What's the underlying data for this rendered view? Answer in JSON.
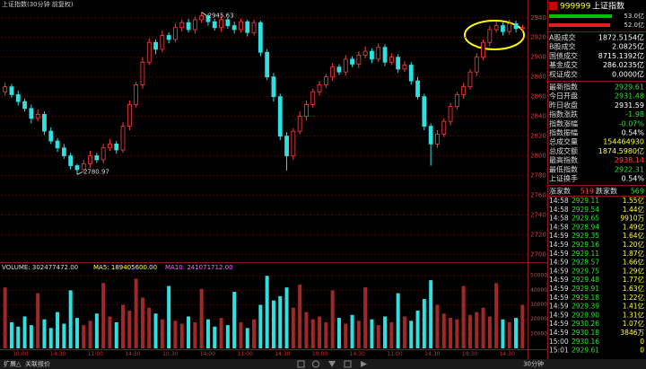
{
  "chart_data": [
    {
      "type": "candlestick",
      "title": "上证指数(30分钟 前复权)",
      "open": [
        2865,
        2870,
        2862,
        2855,
        2848,
        2838,
        2842,
        2825,
        2815,
        2808,
        2800,
        2790,
        2786,
        2792,
        2800,
        2796,
        2808,
        2812,
        2806,
        2830,
        2852,
        2872,
        2895,
        2915,
        2908,
        2922,
        2918,
        2930,
        2935,
        2928,
        2938,
        2942,
        2936,
        2930,
        2938,
        2932,
        2928,
        2936,
        2925,
        2935,
        2905,
        2880,
        2860,
        2820,
        2800,
        2825,
        2840,
        2852,
        2865,
        2872,
        2880,
        2890,
        2885,
        2898,
        2893,
        2902,
        2906,
        2898,
        2910,
        2895,
        2900,
        2888,
        2892,
        2876,
        2860,
        2830,
        2812,
        2822,
        2835,
        2850,
        2862,
        2870,
        2885,
        2900,
        2915,
        2928,
        2932,
        2926,
        2934,
        2929
      ],
      "high": [
        2874,
        2873,
        2866,
        2858,
        2852,
        2847,
        2845,
        2829,
        2818,
        2812,
        2803,
        2792,
        2796,
        2805,
        2803,
        2812,
        2817,
        2815,
        2834,
        2856,
        2875,
        2900,
        2919,
        2918,
        2927,
        2925,
        2934,
        2938,
        2939,
        2941,
        2945.63,
        2944,
        2939,
        2942,
        2940,
        2936,
        2939,
        2938,
        2938,
        2937,
        2908,
        2884,
        2863,
        2824,
        2828,
        2845,
        2856,
        2868,
        2876,
        2883,
        2894,
        2893,
        2902,
        2901,
        2906,
        2911,
        2909,
        2914,
        2913,
        2904,
        2903,
        2896,
        2895,
        2880,
        2863,
        2833,
        2826,
        2838,
        2854,
        2865,
        2874,
        2888,
        2904,
        2918,
        2932,
        2936,
        2935,
        2938,
        2937,
        2933
      ],
      "low": [
        2861,
        2859,
        2851,
        2845,
        2833,
        2835,
        2821,
        2812,
        2804,
        2797,
        2786,
        2780.97,
        2783,
        2788,
        2793,
        2792,
        2805,
        2802,
        2803,
        2826,
        2849,
        2868,
        2892,
        2903,
        2905,
        2914,
        2915,
        2926,
        2925,
        2924,
        2935,
        2932,
        2927,
        2926,
        2929,
        2924,
        2925,
        2921,
        2922,
        2901,
        2877,
        2855,
        2816,
        2785,
        2796,
        2822,
        2836,
        2849,
        2861,
        2869,
        2876,
        2882,
        2881,
        2890,
        2889,
        2899,
        2894,
        2895,
        2891,
        2892,
        2884,
        2885,
        2872,
        2857,
        2826,
        2790,
        2808,
        2819,
        2831,
        2847,
        2858,
        2867,
        2881,
        2897,
        2911,
        2925,
        2922,
        2923,
        2925,
        2926
      ],
      "close": [
        2870,
        2862,
        2855,
        2848,
        2838,
        2842,
        2825,
        2815,
        2808,
        2800,
        2790,
        2786,
        2792,
        2800,
        2796,
        2808,
        2812,
        2806,
        2830,
        2852,
        2872,
        2895,
        2915,
        2908,
        2922,
        2918,
        2930,
        2935,
        2928,
        2938,
        2942,
        2936,
        2930,
        2938,
        2932,
        2928,
        2936,
        2925,
        2935,
        2905,
        2880,
        2860,
        2820,
        2800,
        2825,
        2840,
        2852,
        2865,
        2872,
        2880,
        2890,
        2885,
        2898,
        2893,
        2902,
        2906,
        2898,
        2910,
        2895,
        2900,
        2888,
        2892,
        2876,
        2860,
        2830,
        2812,
        2822,
        2835,
        2850,
        2862,
        2870,
        2885,
        2900,
        2915,
        2928,
        2932,
        2926,
        2934,
        2929,
        2930
      ],
      "ylim": [
        2694,
        2958
      ],
      "yticks": [
        2700,
        2720,
        2740,
        2760,
        2780,
        2800,
        2820,
        2840,
        2860,
        2880,
        2900,
        2920,
        2940
      ],
      "up_color": "#ff3c3c",
      "down_color": "#30e0e0",
      "grid": true
    },
    {
      "type": "bar",
      "title": "VOLUME: 302477472.00",
      "annotations": [
        "MA5: 189405600.00",
        "MA10: 241071712.00"
      ],
      "values": [
        42000,
        18000,
        15000,
        22000,
        16000,
        38000,
        20000,
        14000,
        25000,
        17000,
        40000,
        21000,
        16000,
        19000,
        24000,
        45000,
        22000,
        18000,
        30000,
        26000,
        48000,
        35000,
        28000,
        24000,
        20000,
        43000,
        19000,
        17000,
        22000,
        18000,
        41000,
        20000,
        15000,
        21000,
        16000,
        39000,
        18000,
        14000,
        20000,
        30000,
        50000,
        33000,
        36000,
        42000,
        28000,
        44000,
        25000,
        20000,
        22000,
        18000,
        40000,
        21000,
        17000,
        23000,
        19000,
        42000,
        20000,
        16000,
        22000,
        18000,
        38000,
        22000,
        19000,
        26000,
        34000,
        47000,
        30000,
        24000,
        21000,
        20000,
        43000,
        23000,
        25000,
        28000,
        22000,
        45000,
        20000,
        18000,
        21000,
        30000
      ],
      "ylim": [
        0,
        52000
      ],
      "yticks": [
        10000,
        20000,
        30000,
        40000,
        50000
      ],
      "x_labels": [
        "10:00",
        "14:30",
        "11:00",
        "14:30",
        "10:30",
        "14:00",
        "11:00",
        "14:30",
        "10:00",
        "14:30",
        "11:00",
        "14:30",
        "10:30",
        "14:30"
      ]
    }
  ],
  "panel": {
    "code": "999999",
    "name": "上证指数",
    "bars": [
      "53.0亿",
      "52.0亿"
    ],
    "turnover": [
      [
        "A股成交",
        "1872.5154亿"
      ],
      [
        "B股成交",
        "2.0825亿"
      ],
      [
        "国债成交",
        "8715.1392亿"
      ],
      [
        "基金成交",
        "286.0235亿"
      ],
      [
        "权证成交",
        "0.0000亿"
      ]
    ],
    "index": [
      [
        "最新指数",
        "2929.61"
      ],
      [
        "今日开盘",
        "2931.48"
      ],
      [
        "昨日收盘",
        "2931.59"
      ],
      [
        "指数涨跌",
        "-1.98"
      ],
      [
        "指数涨幅",
        "-0.07%"
      ],
      [
        "指数振幅",
        "0.54%"
      ],
      [
        "总成交量",
        "154464930"
      ],
      [
        "总成交额",
        "1874.5980亿"
      ],
      [
        "最高指数",
        "2938.14"
      ],
      [
        "最低指数",
        "2922.31"
      ],
      [
        "上证换手",
        "0.54%"
      ]
    ],
    "breadth": [
      "涨家数",
      "519",
      "跌家数",
      "569"
    ],
    "ticks": [
      [
        "14:58",
        "2929.11",
        "1.55亿"
      ],
      [
        "14:58",
        "2929.54",
        "1.44亿"
      ],
      [
        "14:58",
        "2929.65",
        "9910万"
      ],
      [
        "14:58",
        "2928.94",
        "1.49亿"
      ],
      [
        "14:59",
        "2929.35",
        "1.64亿"
      ],
      [
        "14:59",
        "2929.16",
        "1.20亿"
      ],
      [
        "14:59",
        "2929.11",
        "1.87亿"
      ],
      [
        "14:59",
        "2928.57",
        "1.66亿"
      ],
      [
        "14:59",
        "2929.75",
        "1.29亿"
      ],
      [
        "14:59",
        "2929.48",
        "1.77亿"
      ],
      [
        "14:59",
        "2929.91",
        "1.63亿"
      ],
      [
        "14:59",
        "2929.18",
        "1.22亿"
      ],
      [
        "14:59",
        "2929.39",
        "1.41亿"
      ],
      [
        "14:59",
        "2929.90",
        "1.31亿"
      ],
      [
        "14:59",
        "2930.26",
        "1.07亿"
      ],
      [
        "14:59",
        "2930.18",
        "3846万"
      ],
      [
        "15:00",
        "2930.16",
        "0"
      ],
      [
        "15:01",
        "2929.61",
        "0"
      ]
    ]
  },
  "footer": {
    "tabs": [
      "扩展△",
      "关联报价"
    ],
    "period": "30分钟"
  }
}
